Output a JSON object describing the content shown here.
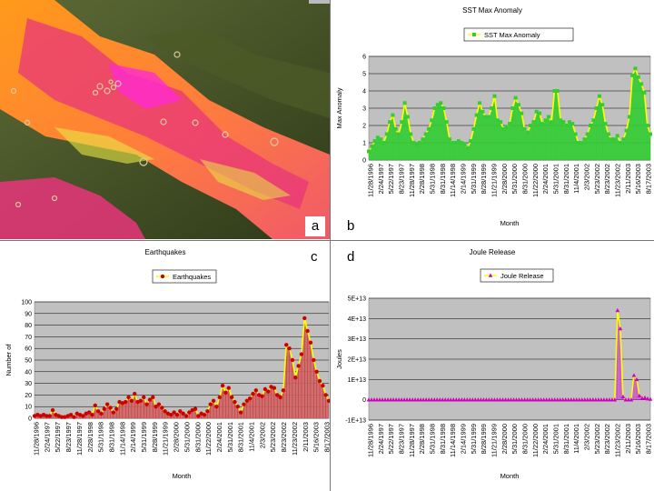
{
  "labels": {
    "a": "a",
    "b": "b",
    "c": "c",
    "d": "d"
  },
  "colors": {
    "plot_bg": "#c0c0c0",
    "sst_line": "#ffff00",
    "sst_marker": "#33cc33",
    "sst_fill": "#33cc33",
    "eq_line": "#ffff00",
    "eq_marker": "#cc0000",
    "eq_fill": "#cc6666",
    "jr_line": "#ffff00",
    "jr_marker": "#cc00cc",
    "jr_fill": "#cc66cc"
  },
  "chart_data": [
    {
      "id": "sst",
      "type": "area",
      "title": "SST Max Anomaly",
      "legend": "SST Max Anomaly",
      "ylabel": "Max Anomaly",
      "xlabel": "Month",
      "ylim": [
        0,
        6
      ],
      "yticks": [
        "0",
        "1",
        "2",
        "3",
        "4",
        "5",
        "6"
      ],
      "xticks": [
        "11/28/1996",
        "2/24/1997",
        "5/22/1997",
        "8/23/1997",
        "11/28/1997",
        "2/28/1998",
        "5/31/1998",
        "8/31/1998",
        "11/14/1998",
        "2/14/1999",
        "5/31/1999",
        "8/28/1999",
        "11/21/1999",
        "2/28/2000",
        "5/31/2000",
        "8/31/2000",
        "11/22/2000",
        "2/24/2001",
        "5/31/2001",
        "8/31/2001",
        "11/4/2001",
        "2/3/2002",
        "5/23/2002",
        "8/23/2002",
        "11/23/2002",
        "2/11/2003",
        "5/16/2003",
        "8/17/2003"
      ],
      "values": [
        0.5,
        0.8,
        1.1,
        1.3,
        1.2,
        1.0,
        1.5,
        2.2,
        2.6,
        1.8,
        1.5,
        2.2,
        3.3,
        2.5,
        1.5,
        1.0,
        0.9,
        1.0,
        1.2,
        1.5,
        1.8,
        2.3,
        3.0,
        3.2,
        3.3,
        3.0,
        2.2,
        1.2,
        1.0,
        1.0,
        1.1,
        1.0,
        0.9,
        0.7,
        1.1,
        1.8,
        2.6,
        3.3,
        2.8,
        2.5,
        2.5,
        3.0,
        3.7,
        2.3,
        2.2,
        1.8,
        1.9,
        2.1,
        3.0,
        3.6,
        3.2,
        2.7,
        1.8,
        1.6,
        2.0,
        2.2,
        2.8,
        2.7,
        2.1,
        2.3,
        2.5,
        2.2,
        4.0,
        4.0,
        2.3,
        2.2,
        2.0,
        2.2,
        2.1,
        1.5,
        1.0,
        1.0,
        1.2,
        1.5,
        2.0,
        2.3,
        3.0,
        3.7,
        3.2,
        2.1,
        1.5,
        1.2,
        1.2,
        1.4,
        1.0,
        1.2,
        1.7,
        2.5,
        4.9,
        5.3,
        4.8,
        4.4,
        3.9,
        2.0,
        1.5
      ]
    },
    {
      "id": "eq",
      "type": "area",
      "title": "Earthquakes",
      "legend": "Earthquakes",
      "ylabel": "Number of",
      "xlabel": "Month",
      "ylim": [
        0,
        100
      ],
      "yticks": [
        "0",
        "10",
        "20",
        "30",
        "40",
        "50",
        "60",
        "70",
        "80",
        "90",
        "100"
      ],
      "xticks": [
        "11/28/1996",
        "2/24/1997",
        "5/22/1997",
        "8/23/1997",
        "11/28/1997",
        "2/28/1998",
        "5/31/1998",
        "8/31/1998",
        "11/14/1998",
        "2/14/1999",
        "5/31/1999",
        "8/28/1999",
        "11/21/1999",
        "2/28/2000",
        "5/31/2000",
        "8/31/2000",
        "11/22/2000",
        "2/24/2001",
        "5/31/2001",
        "8/31/2001",
        "11/4/2001",
        "2/3/2002",
        "5/23/2002",
        "8/23/2002",
        "11/23/2002",
        "2/11/2003",
        "5/16/2003",
        "8/17/2003"
      ],
      "values": [
        2,
        3,
        2,
        3,
        2,
        2,
        7,
        3,
        2,
        1,
        1,
        2,
        3,
        1,
        4,
        3,
        2,
        4,
        5,
        3,
        11,
        6,
        4,
        8,
        12,
        9,
        5,
        8,
        14,
        13,
        14,
        18,
        15,
        21,
        14,
        15,
        18,
        12,
        16,
        18,
        10,
        12,
        9,
        6,
        4,
        3,
        5,
        3,
        6,
        4,
        2,
        5,
        7,
        8,
        2,
        4,
        3,
        6,
        12,
        15,
        10,
        18,
        28,
        22,
        26,
        18,
        14,
        10,
        5,
        12,
        15,
        17,
        21,
        24,
        20,
        19,
        25,
        23,
        27,
        26,
        20,
        18,
        24,
        63,
        60,
        50,
        35,
        45,
        55,
        86,
        75,
        65,
        50,
        40,
        32,
        28,
        20,
        15
      ]
    },
    {
      "id": "jr",
      "type": "area",
      "title": "Joule Release",
      "legend": "Joule Release",
      "ylabel": "Joules",
      "xlabel": "Month",
      "ylim": [
        -10000000000000.0,
        50000000000000.0
      ],
      "yticks": [
        "-1E+13",
        "0",
        "1E+13",
        "2E+13",
        "3E+13",
        "4E+13",
        "5E+13"
      ],
      "xticks": [
        "11/28/1996",
        "2/24/1997",
        "5/22/1997",
        "8/23/1997",
        "11/28/1997",
        "2/28/1998",
        "5/31/1998",
        "8/31/1998",
        "11/14/1998",
        "2/14/1999",
        "5/31/1999",
        "8/28/1999",
        "11/21/1999",
        "2/28/2000",
        "5/31/2000",
        "8/31/2000",
        "11/22/2000",
        "2/24/2001",
        "5/31/2001",
        "8/31/2001",
        "11/4/2001",
        "2/3/2002",
        "5/23/2002",
        "8/23/2002",
        "11/23/2002",
        "2/11/2003",
        "5/16/2003",
        "8/17/2003"
      ],
      "values": [
        0,
        0,
        0,
        0,
        0,
        0,
        0,
        0,
        0,
        0,
        0,
        0,
        0,
        0,
        0,
        0,
        0,
        0,
        0,
        0,
        0,
        0,
        0,
        0,
        0,
        0,
        0,
        0,
        0,
        0,
        0,
        0,
        0,
        0,
        0,
        0,
        0,
        0,
        0,
        0,
        0,
        0,
        0,
        0,
        0,
        0,
        0,
        0,
        0,
        0,
        0,
        0,
        0,
        0,
        0,
        0,
        0,
        0,
        0,
        0,
        0,
        0,
        0,
        0,
        0,
        0,
        0,
        0,
        0,
        0,
        0,
        0,
        0,
        0,
        0,
        0,
        0,
        0,
        0,
        0,
        0,
        0,
        0,
        0,
        0,
        0,
        0,
        0,
        0,
        0,
        0,
        44000000000000.0,
        35000000000000.0,
        1500000000000.0,
        0,
        0,
        0,
        12000000000000.0,
        10000000000000.0,
        2000000000000.0,
        800000000000.0,
        1000000000000.0,
        500000000000.0,
        300000000000.0
      ]
    }
  ]
}
